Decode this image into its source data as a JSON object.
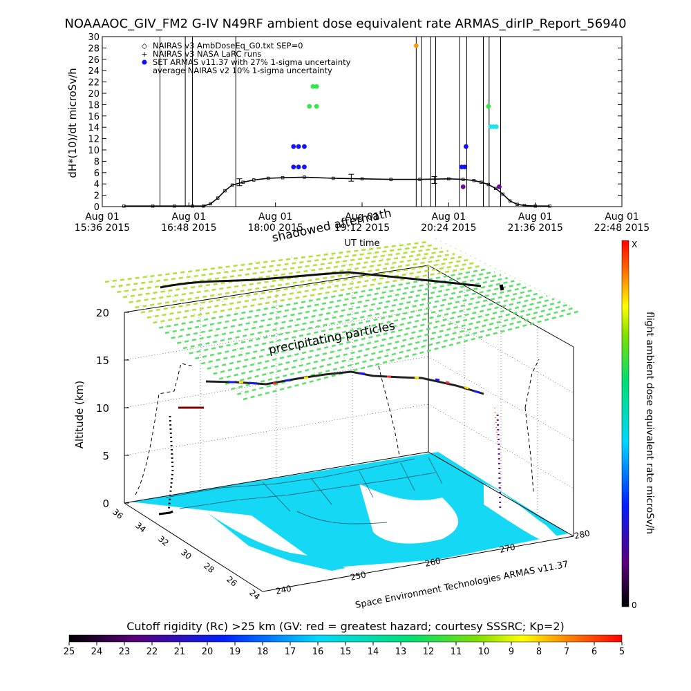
{
  "title": "NOAAAOC_GIV_FM2 G-IV   N49RF  ambient dose equivalent rate ARMAS_dirIP_Report_56940",
  "colors": {
    "armas_blue": "#1010ff",
    "armas_green": "#33e84a",
    "armas_cyan": "#22e0f0",
    "armas_orange": "#ff9a00",
    "purple": "#6a0aa0",
    "map_fill": "#14d8f4",
    "mesh_green": "#5fe06a",
    "mesh_yellowgreen": "#b4e03a"
  },
  "chart_data": [
    {
      "type": "line",
      "ylabel": "dH*(10)/dt microSv/h",
      "xlabel": "UT time",
      "ylim": [
        0,
        30
      ],
      "yticks": [
        "0",
        "2",
        "4",
        "6",
        "8",
        "10",
        "12",
        "14",
        "16",
        "18",
        "20",
        "22",
        "24",
        "26",
        "28",
        "30"
      ],
      "xticks": [
        {
          "line1": "Aug 01",
          "line2": "15:36 2015",
          "hour": 15.6
        },
        {
          "line1": "Aug 01",
          "line2": "16:48 2015",
          "hour": 16.8
        },
        {
          "line1": "Aug 01",
          "line2": "18:00 2015",
          "hour": 18.0
        },
        {
          "line1": "Aug 01",
          "line2": "19:12 2015",
          "hour": 19.2
        },
        {
          "line1": "Aug 01",
          "line2": "20:24 2015",
          "hour": 20.4
        },
        {
          "line1": "Aug 01",
          "line2": "21:36 2015",
          "hour": 21.6
        },
        {
          "line1": "Aug 01",
          "line2": "22:48 2015",
          "hour": 22.8
        }
      ],
      "xlim_hours": [
        15.6,
        22.8
      ],
      "legend": [
        {
          "symbol": "◇",
          "label": "NAIRAS v3 AmbDoseEq_G0.txt SEP=0"
        },
        {
          "symbol": "+",
          "label": "NAIRAS v3 NASA LaRC runs"
        },
        {
          "symbol": "●",
          "label": "SET ARMAS v11.37 with 27% 1-sigma uncertainty"
        },
        {
          "symbol": "",
          "label": "average NAIRAS v2 10% 1-sigma uncertainty"
        }
      ],
      "series": [
        {
          "name": "NAIRAS v3 AmbDoseEq_G0.txt SEP=0",
          "x": [
            15.9,
            16.3,
            16.6,
            16.85,
            17.0,
            17.1,
            17.2,
            17.3,
            17.4,
            17.55,
            17.7,
            17.9,
            18.1,
            18.4,
            18.8,
            19.2,
            19.6,
            20.0,
            20.4,
            20.6,
            20.75,
            20.85,
            20.95,
            21.05,
            21.15,
            21.25,
            21.35,
            21.45,
            21.6,
            21.8
          ],
          "y": [
            0.1,
            0.1,
            0.1,
            0.1,
            0.1,
            0.5,
            1.5,
            2.8,
            3.8,
            4.3,
            4.7,
            5.0,
            5.1,
            5.2,
            5.0,
            4.9,
            4.8,
            4.8,
            4.9,
            4.8,
            4.6,
            4.3,
            3.9,
            3.2,
            2.2,
            1.0,
            0.4,
            0.2,
            0.1,
            0.1
          ]
        },
        {
          "name": "SET ARMAS v11.37 with 27% 1-sigma uncertainty",
          "points": [
            {
              "x": 18.25,
              "y": 10.6,
              "c": "armas_blue"
            },
            {
              "x": 18.25,
              "y": 7.0,
              "c": "armas_blue"
            },
            {
              "x": 18.32,
              "y": 10.6,
              "c": "armas_blue"
            },
            {
              "x": 18.32,
              "y": 7.0,
              "c": "armas_blue"
            },
            {
              "x": 18.4,
              "y": 10.6,
              "c": "armas_blue"
            },
            {
              "x": 18.4,
              "y": 7.0,
              "c": "armas_blue"
            },
            {
              "x": 18.47,
              "y": 17.7,
              "c": "armas_green"
            },
            {
              "x": 18.52,
              "y": 21.2,
              "c": "armas_green"
            },
            {
              "x": 18.57,
              "y": 17.7,
              "c": "armas_green"
            },
            {
              "x": 18.57,
              "y": 21.2,
              "c": "armas_green"
            },
            {
              "x": 19.95,
              "y": 28.4,
              "c": "armas_orange"
            },
            {
              "x": 20.58,
              "y": 7.0,
              "c": "armas_blue"
            },
            {
              "x": 20.62,
              "y": 7.0,
              "c": "armas_blue"
            },
            {
              "x": 20.64,
              "y": 10.6,
              "c": "armas_blue"
            },
            {
              "x": 20.6,
              "y": 3.5,
              "c": "purple"
            },
            {
              "x": 20.95,
              "y": 17.7,
              "c": "armas_green"
            },
            {
              "x": 20.98,
              "y": 14.1,
              "c": "armas_cyan"
            },
            {
              "x": 21.02,
              "y": 14.1,
              "c": "armas_cyan"
            },
            {
              "x": 21.06,
              "y": 14.1,
              "c": "armas_cyan"
            },
            {
              "x": 21.1,
              "y": 3.5,
              "c": "purple"
            }
          ]
        }
      ],
      "errorbars": [
        {
          "x": 17.5,
          "y": 4.3
        },
        {
          "x": 19.05,
          "y": 5.1
        },
        {
          "x": 20.2,
          "y": 4.7
        }
      ]
    },
    {
      "type": "3d-trajectory",
      "zlabel": "Altitude (km)",
      "zticks": [
        "0",
        "5",
        "10",
        "15",
        "20"
      ],
      "lat_ticks": [
        "36",
        "34",
        "32",
        "30",
        "28",
        "26",
        "24"
      ],
      "lon_ticks": [
        "240",
        "250",
        "260",
        "270",
        "280"
      ],
      "annotations": [
        "shadowed aftermath",
        "precipitating particles"
      ],
      "credit": "Space Environment Technologies ARMAS v11.37",
      "colorbar_label": "flight ambient dose equivalent rate microSv/h",
      "colorbar_top": "X",
      "colorbar_bottom": "0"
    }
  ],
  "rc_colorbar": {
    "title": "Cutoff rigidity (Rc) >25 km (GV: red = greatest hazard; courtesy SSSRC; Kp=2)",
    "ticks": [
      "25",
      "24",
      "23",
      "22",
      "21",
      "20",
      "19",
      "18",
      "17",
      "16",
      "15",
      "14",
      "13",
      "12",
      "11",
      "10",
      "9",
      "8",
      "7",
      "6",
      "5"
    ]
  }
}
